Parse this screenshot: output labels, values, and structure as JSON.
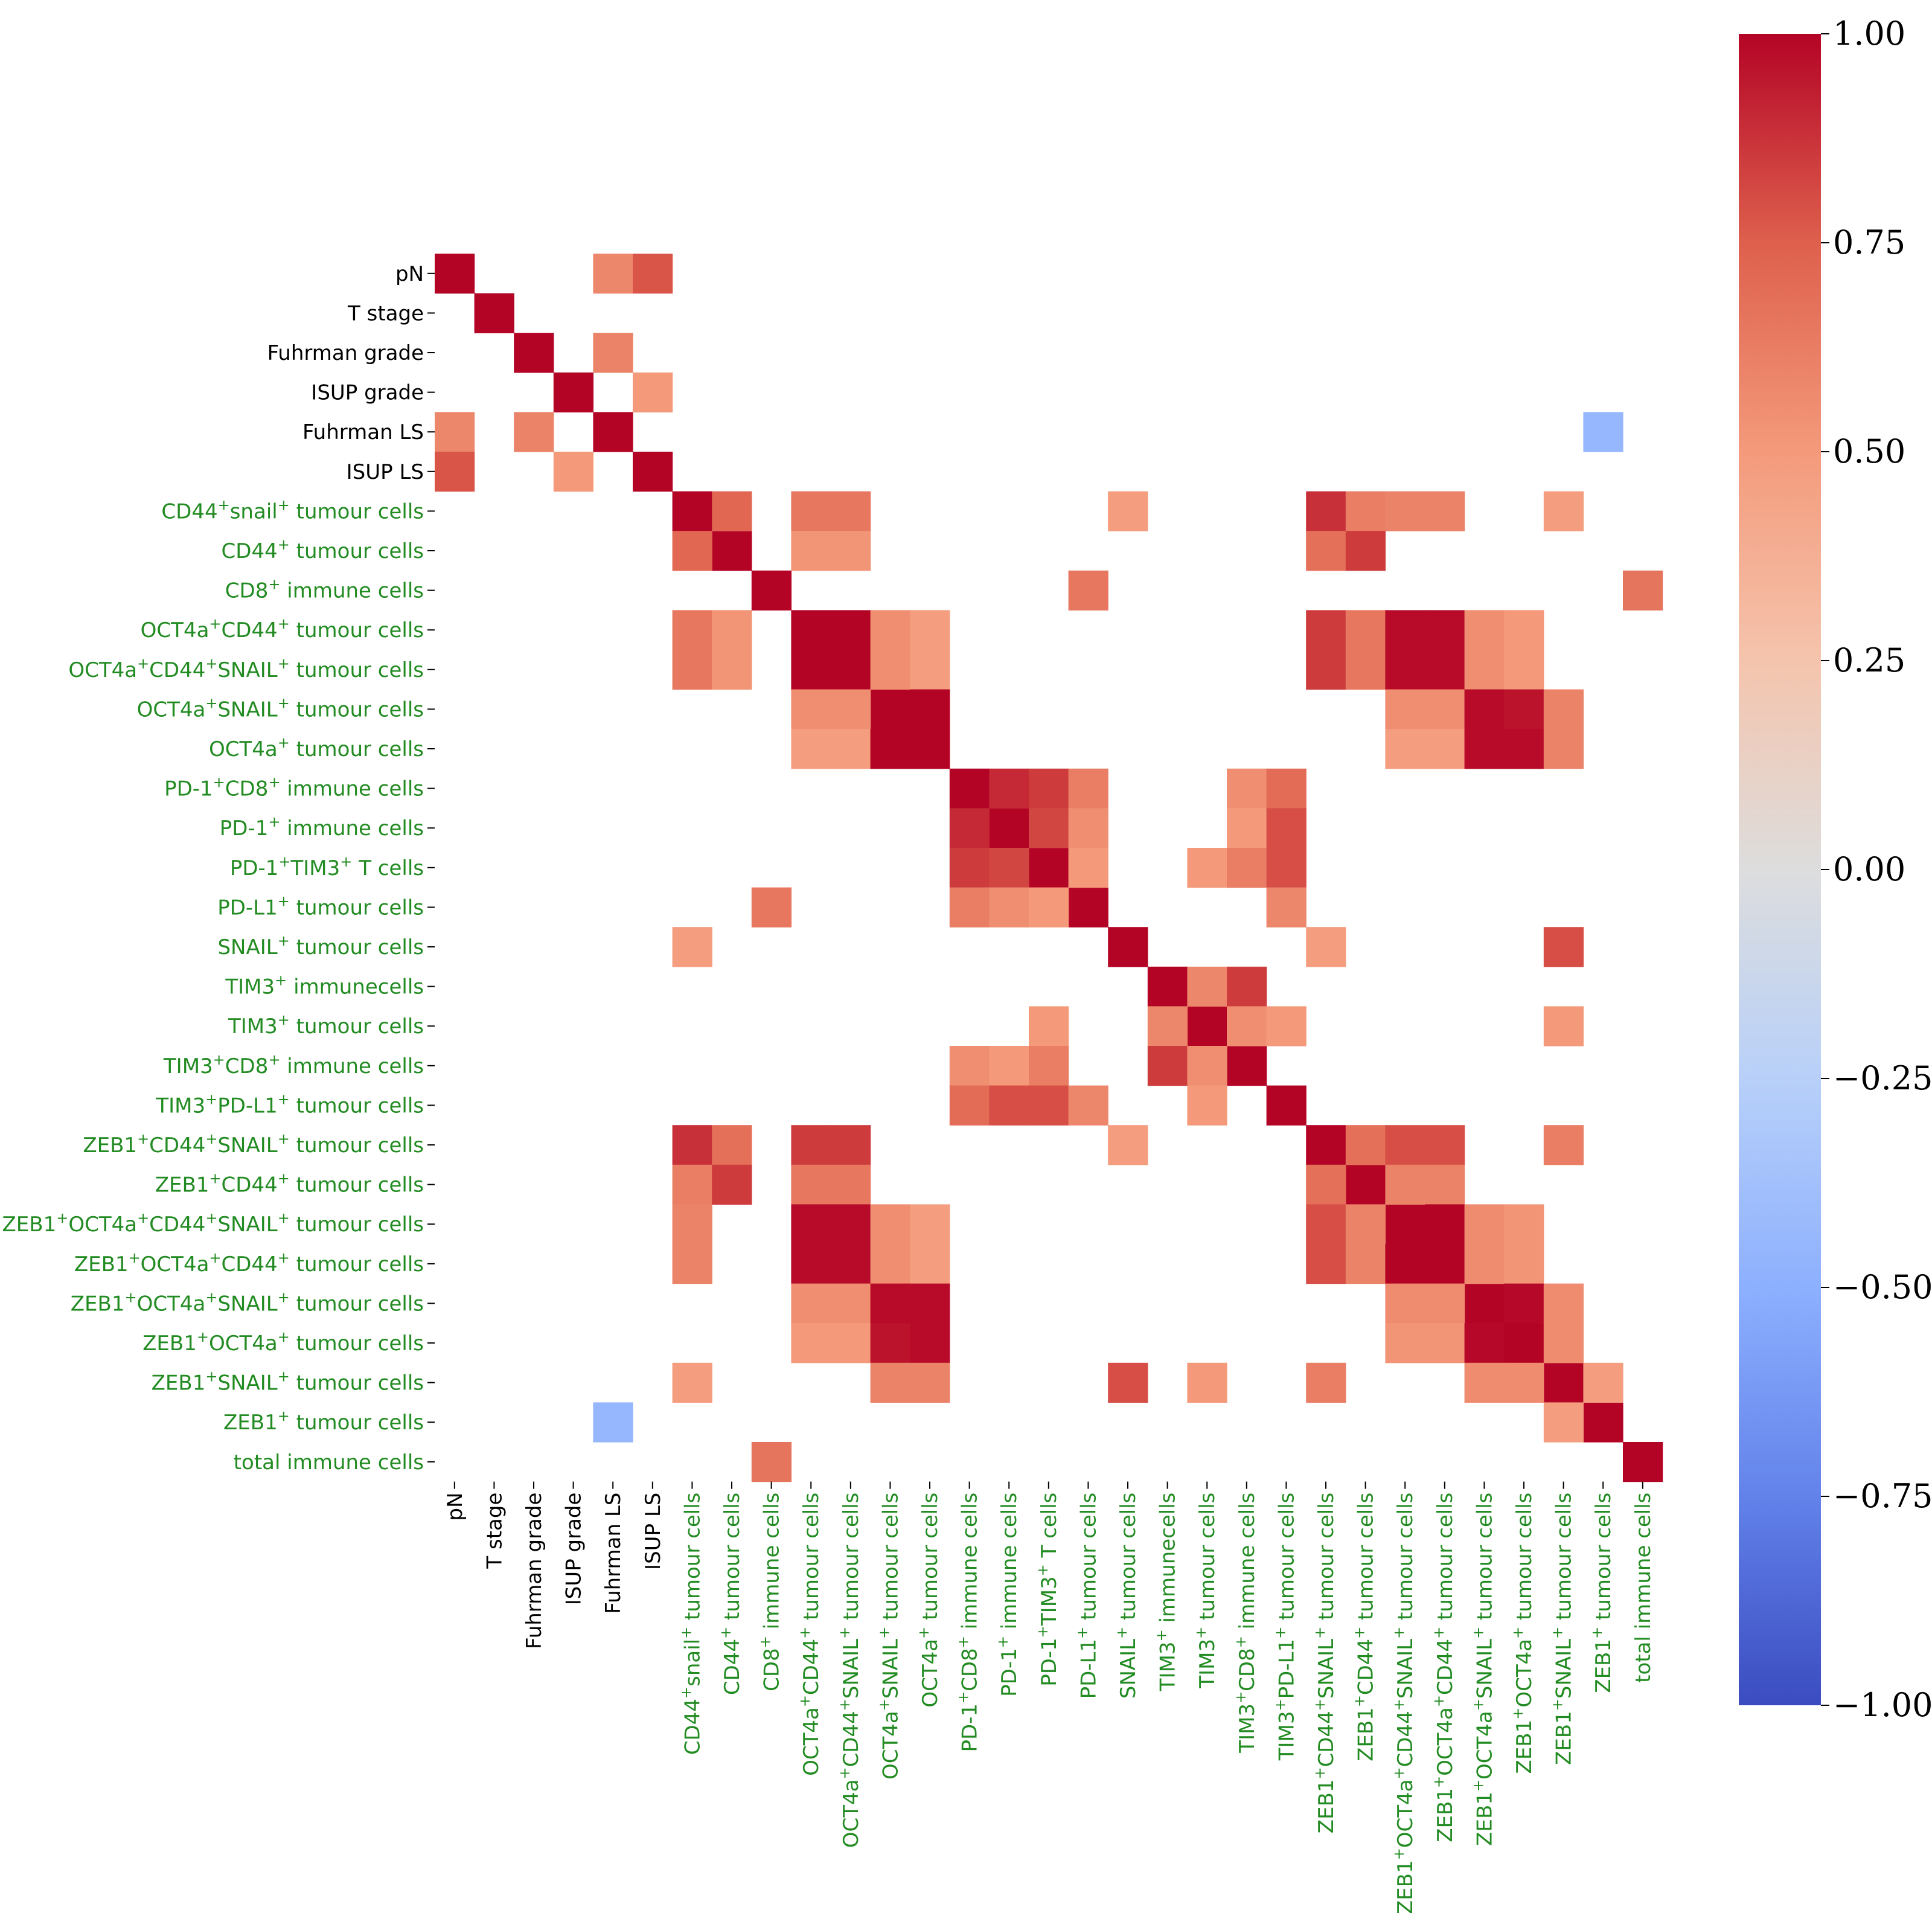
{
  "chart_data": {
    "type": "heatmap",
    "title": "",
    "labels": [
      {
        "key": "pN",
        "parts": [
          [
            "pN",
            false
          ]
        ],
        "clinical": true
      },
      {
        "key": "T stage",
        "parts": [
          [
            "T stage",
            false
          ]
        ],
        "clinical": true
      },
      {
        "key": "Fuhrman grade",
        "parts": [
          [
            "Fuhrman grade",
            false
          ]
        ],
        "clinical": true
      },
      {
        "key": "ISUP grade",
        "parts": [
          [
            "ISUP grade",
            false
          ]
        ],
        "clinical": true
      },
      {
        "key": "Fuhrman LS",
        "parts": [
          [
            "Fuhrman LS",
            false
          ]
        ],
        "clinical": true
      },
      {
        "key": "ISUP LS",
        "parts": [
          [
            "ISUP LS",
            false
          ]
        ],
        "clinical": true
      },
      {
        "key": "CD44+snail+ tumour cells",
        "parts": [
          [
            "CD44",
            false
          ],
          [
            "+",
            true
          ],
          [
            "snail",
            false
          ],
          [
            "+",
            true
          ],
          [
            " tumour cells",
            false
          ]
        ],
        "clinical": false
      },
      {
        "key": "CD44+ tumour cells",
        "parts": [
          [
            "CD44",
            false
          ],
          [
            "+",
            true
          ],
          [
            " tumour cells",
            false
          ]
        ],
        "clinical": false
      },
      {
        "key": "CD8+ immune cells",
        "parts": [
          [
            "CD8",
            false
          ],
          [
            "+",
            true
          ],
          [
            " immune cells",
            false
          ]
        ],
        "clinical": false
      },
      {
        "key": "OCT4a+CD44+ tumour cells",
        "parts": [
          [
            "OCT4a",
            false
          ],
          [
            "+",
            true
          ],
          [
            "CD44",
            false
          ],
          [
            "+",
            true
          ],
          [
            " tumour cells",
            false
          ]
        ],
        "clinical": false
      },
      {
        "key": "OCT4a+CD44+SNAIL+ tumour cells",
        "parts": [
          [
            "OCT4a",
            false
          ],
          [
            "+",
            true
          ],
          [
            "CD44",
            false
          ],
          [
            "+",
            true
          ],
          [
            "SNAIL",
            false
          ],
          [
            "+",
            true
          ],
          [
            " tumour cells",
            false
          ]
        ],
        "clinical": false
      },
      {
        "key": "OCT4a+SNAIL+ tumour cells",
        "parts": [
          [
            "OCT4a",
            false
          ],
          [
            "+",
            true
          ],
          [
            "SNAIL",
            false
          ],
          [
            "+",
            true
          ],
          [
            " tumour cells",
            false
          ]
        ],
        "clinical": false
      },
      {
        "key": "OCT4a+ tumour cells",
        "parts": [
          [
            "OCT4a",
            false
          ],
          [
            "+",
            true
          ],
          [
            " tumour cells",
            false
          ]
        ],
        "clinical": false
      },
      {
        "key": "PD-1+CD8+ immune cells",
        "parts": [
          [
            "PD-1",
            false
          ],
          [
            "+",
            true
          ],
          [
            "CD8",
            false
          ],
          [
            "+",
            true
          ],
          [
            " immune cells",
            false
          ]
        ],
        "clinical": false
      },
      {
        "key": "PD-1+ immune cells",
        "parts": [
          [
            "PD-1",
            false
          ],
          [
            "+",
            true
          ],
          [
            " immune cells",
            false
          ]
        ],
        "clinical": false
      },
      {
        "key": "PD-1+TIM3+ T cells",
        "parts": [
          [
            "PD-1",
            false
          ],
          [
            "+",
            true
          ],
          [
            "TIM3",
            false
          ],
          [
            "+",
            true
          ],
          [
            " T cells",
            false
          ]
        ],
        "clinical": false
      },
      {
        "key": "PD-L1+ tumour cells",
        "parts": [
          [
            "PD-L1",
            false
          ],
          [
            "+",
            true
          ],
          [
            " tumour cells",
            false
          ]
        ],
        "clinical": false
      },
      {
        "key": "SNAIL+ tumour cells",
        "parts": [
          [
            "SNAIL",
            false
          ],
          [
            "+",
            true
          ],
          [
            " tumour cells",
            false
          ]
        ],
        "clinical": false
      },
      {
        "key": "TIM3+ immunecells",
        "parts": [
          [
            "TIM3",
            false
          ],
          [
            "+",
            true
          ],
          [
            " immunecells",
            false
          ]
        ],
        "clinical": false
      },
      {
        "key": "TIM3+ tumour cells",
        "parts": [
          [
            "TIM3",
            false
          ],
          [
            "+",
            true
          ],
          [
            " tumour cells",
            false
          ]
        ],
        "clinical": false
      },
      {
        "key": "TIM3+CD8+ immune cells",
        "parts": [
          [
            "TIM3",
            false
          ],
          [
            "+",
            true
          ],
          [
            "CD8",
            false
          ],
          [
            "+",
            true
          ],
          [
            " immune cells",
            false
          ]
        ],
        "clinical": false
      },
      {
        "key": "TIM3+PD-L1+ tumour cells",
        "parts": [
          [
            "TIM3",
            false
          ],
          [
            "+",
            true
          ],
          [
            "PD-L1",
            false
          ],
          [
            "+",
            true
          ],
          [
            " tumour cells",
            false
          ]
        ],
        "clinical": false
      },
      {
        "key": "ZEB1+CD44+SNAIL+ tumour cells",
        "parts": [
          [
            "ZEB1",
            false
          ],
          [
            "+",
            true
          ],
          [
            "CD44",
            false
          ],
          [
            "+",
            true
          ],
          [
            "SNAIL",
            false
          ],
          [
            "+",
            true
          ],
          [
            " tumour cells",
            false
          ]
        ],
        "clinical": false
      },
      {
        "key": "ZEB1+CD44+ tumour cells",
        "parts": [
          [
            "ZEB1",
            false
          ],
          [
            "+",
            true
          ],
          [
            "CD44",
            false
          ],
          [
            "+",
            true
          ],
          [
            " tumour cells",
            false
          ]
        ],
        "clinical": false
      },
      {
        "key": "ZEB1+OCT4a+CD44+SNAIL+ tumour cells",
        "parts": [
          [
            "ZEB1",
            false
          ],
          [
            "+",
            true
          ],
          [
            "OCT4a",
            false
          ],
          [
            "+",
            true
          ],
          [
            "CD44",
            false
          ],
          [
            "+",
            true
          ],
          [
            "SNAIL",
            false
          ],
          [
            "+",
            true
          ],
          [
            " tumour cells",
            false
          ]
        ],
        "clinical": false
      },
      {
        "key": "ZEB1+OCT4a+CD44+ tumour cells",
        "parts": [
          [
            "ZEB1",
            false
          ],
          [
            "+",
            true
          ],
          [
            "OCT4a",
            false
          ],
          [
            "+",
            true
          ],
          [
            "CD44",
            false
          ],
          [
            "+",
            true
          ],
          [
            " tumour cells",
            false
          ]
        ],
        "clinical": false
      },
      {
        "key": "ZEB1+OCT4a+SNAIL+ tumour cells",
        "parts": [
          [
            "ZEB1",
            false
          ],
          [
            "+",
            true
          ],
          [
            "OCT4a",
            false
          ],
          [
            "+",
            true
          ],
          [
            "SNAIL",
            false
          ],
          [
            "+",
            true
          ],
          [
            " tumour cells",
            false
          ]
        ],
        "clinical": false
      },
      {
        "key": "ZEB1+OCT4a+ tumour cells",
        "parts": [
          [
            "ZEB1",
            false
          ],
          [
            "+",
            true
          ],
          [
            "OCT4a",
            false
          ],
          [
            "+",
            true
          ],
          [
            " tumour cells",
            false
          ]
        ],
        "clinical": false
      },
      {
        "key": "ZEB1+SNAIL+ tumour cells",
        "parts": [
          [
            "ZEB1",
            false
          ],
          [
            "+",
            true
          ],
          [
            "SNAIL",
            false
          ],
          [
            "+",
            true
          ],
          [
            " tumour cells",
            false
          ]
        ],
        "clinical": false
      },
      {
        "key": "ZEB1+ tumour cells",
        "parts": [
          [
            "ZEB1",
            false
          ],
          [
            "+",
            true
          ],
          [
            " tumour cells",
            false
          ]
        ],
        "clinical": false
      },
      {
        "key": "total immune cells",
        "parts": [
          [
            "total immune cells",
            false
          ]
        ],
        "clinical": false
      }
    ],
    "cells": [
      [
        0,
        4,
        0.58
      ],
      [
        0,
        5,
        0.78
      ],
      [
        2,
        4,
        0.6
      ],
      [
        3,
        5,
        0.5
      ],
      [
        4,
        29,
        -0.45
      ],
      [
        6,
        7,
        0.72
      ],
      [
        6,
        9,
        0.65
      ],
      [
        6,
        10,
        0.65
      ],
      [
        6,
        17,
        0.48
      ],
      [
        6,
        22,
        0.88
      ],
      [
        6,
        23,
        0.62
      ],
      [
        6,
        24,
        0.6
      ],
      [
        6,
        25,
        0.6
      ],
      [
        6,
        28,
        0.48
      ],
      [
        7,
        9,
        0.52
      ],
      [
        7,
        10,
        0.52
      ],
      [
        7,
        22,
        0.68
      ],
      [
        7,
        23,
        0.85
      ],
      [
        8,
        16,
        0.65
      ],
      [
        8,
        30,
        0.66
      ],
      [
        9,
        10,
        1.0
      ],
      [
        9,
        11,
        0.55
      ],
      [
        9,
        12,
        0.48
      ],
      [
        9,
        22,
        0.85
      ],
      [
        9,
        23,
        0.65
      ],
      [
        9,
        24,
        0.98
      ],
      [
        9,
        25,
        0.98
      ],
      [
        9,
        26,
        0.55
      ],
      [
        9,
        27,
        0.5
      ],
      [
        10,
        11,
        0.55
      ],
      [
        10,
        12,
        0.48
      ],
      [
        10,
        22,
        0.85
      ],
      [
        10,
        23,
        0.65
      ],
      [
        10,
        24,
        0.98
      ],
      [
        10,
        25,
        0.98
      ],
      [
        10,
        26,
        0.55
      ],
      [
        10,
        27,
        0.5
      ],
      [
        11,
        12,
        1.0
      ],
      [
        11,
        24,
        0.55
      ],
      [
        11,
        25,
        0.55
      ],
      [
        11,
        26,
        0.98
      ],
      [
        11,
        27,
        0.96
      ],
      [
        11,
        28,
        0.6
      ],
      [
        12,
        24,
        0.48
      ],
      [
        12,
        25,
        0.48
      ],
      [
        12,
        26,
        0.98
      ],
      [
        12,
        27,
        0.98
      ],
      [
        12,
        28,
        0.6
      ],
      [
        13,
        14,
        0.9
      ],
      [
        13,
        15,
        0.85
      ],
      [
        13,
        16,
        0.62
      ],
      [
        13,
        20,
        0.55
      ],
      [
        13,
        21,
        0.7
      ],
      [
        14,
        15,
        0.82
      ],
      [
        14,
        16,
        0.55
      ],
      [
        14,
        20,
        0.5
      ],
      [
        14,
        21,
        0.8
      ],
      [
        15,
        16,
        0.5
      ],
      [
        15,
        19,
        0.5
      ],
      [
        15,
        20,
        0.62
      ],
      [
        15,
        21,
        0.8
      ],
      [
        16,
        21,
        0.58
      ],
      [
        17,
        22,
        0.48
      ],
      [
        17,
        28,
        0.8
      ],
      [
        18,
        19,
        0.58
      ],
      [
        18,
        20,
        0.85
      ],
      [
        19,
        20,
        0.55
      ],
      [
        19,
        21,
        0.5
      ],
      [
        19,
        28,
        0.5
      ],
      [
        22,
        23,
        0.68
      ],
      [
        22,
        24,
        0.8
      ],
      [
        22,
        25,
        0.8
      ],
      [
        22,
        28,
        0.62
      ],
      [
        23,
        24,
        0.6
      ],
      [
        23,
        25,
        0.6
      ],
      [
        24,
        25,
        1.0
      ],
      [
        24,
        26,
        0.56
      ],
      [
        24,
        27,
        0.52
      ],
      [
        25,
        26,
        0.56
      ],
      [
        25,
        27,
        0.52
      ],
      [
        26,
        27,
        0.99
      ],
      [
        26,
        28,
        0.56
      ],
      [
        27,
        28,
        0.56
      ],
      [
        28,
        29,
        0.48
      ]
    ],
    "colorbar": {
      "colormap": "coolwarm",
      "vmin": -1.0,
      "vmax": 1.0,
      "ticks": [
        "1.00",
        "0.75",
        "0.50",
        "0.25",
        "0.00",
        "−0.25",
        "−0.50",
        "−0.75",
        "−1.00"
      ]
    },
    "label_colors": {
      "clinical": "#000000",
      "marker": "#228b22"
    }
  }
}
